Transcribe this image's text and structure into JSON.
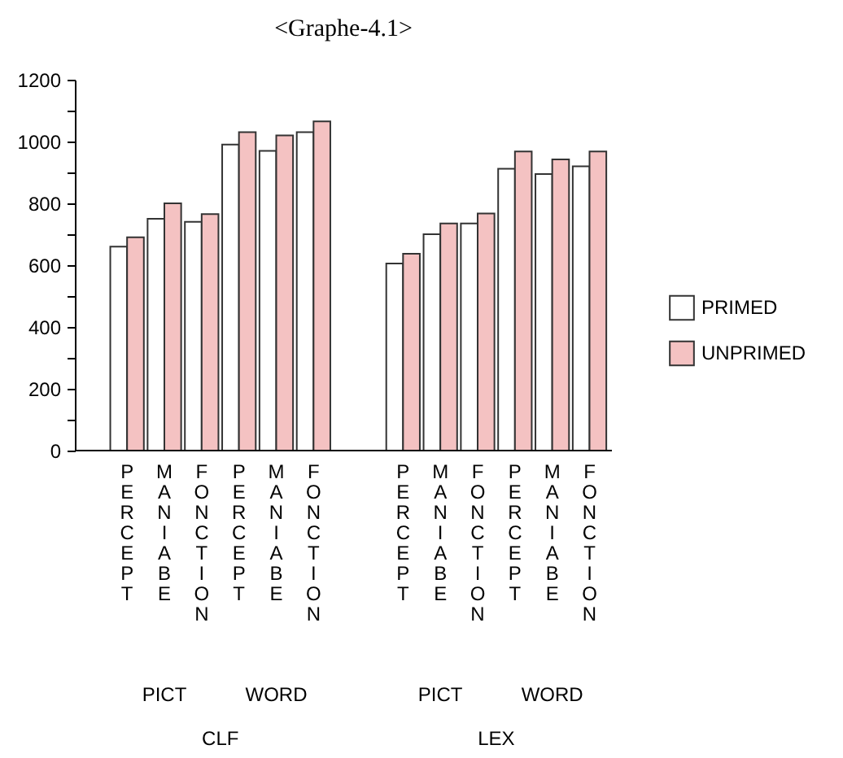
{
  "chart_data": {
    "type": "bar",
    "title": "<Graphe-4.1>",
    "categories": [
      "PERCEPT",
      "MANIABE",
      "FONCTION",
      "PERCEPT",
      "MANIABE",
      "FONCTION",
      "PERCEPT",
      "MANIABE",
      "FONCTION",
      "PERCEPT",
      "MANIABE",
      "FONCTION"
    ],
    "series": [
      {
        "name": "PRIMED",
        "color": "#ffffff",
        "values": [
          660,
          750,
          740,
          990,
          970,
          1030,
          605,
          700,
          735,
          912,
          895,
          920
        ]
      },
      {
        "name": "UNPRIMED",
        "color": "#f4c2c2",
        "values": [
          690,
          800,
          765,
          1030,
          1020,
          1065,
          637,
          735,
          767,
          968,
          942,
          968
        ]
      }
    ],
    "annotations": [
      "PICT",
      "WORD",
      "PICT",
      "WORD",
      "CLF",
      "LEX"
    ],
    "ylim": [
      0,
      1200
    ],
    "yticks": [
      0,
      {
        "value": 100,
        "label": null
      },
      200,
      {
        "value": 300,
        "label": null
      },
      400,
      {
        "value": 500,
        "label": null
      },
      600,
      {
        "value": 700,
        "label": null
      },
      800,
      {
        "value": 900,
        "label": null
      },
      1000,
      {
        "value": 1100,
        "label": null
      },
      1200
    ],
    "grid": false,
    "legend": "right"
  }
}
